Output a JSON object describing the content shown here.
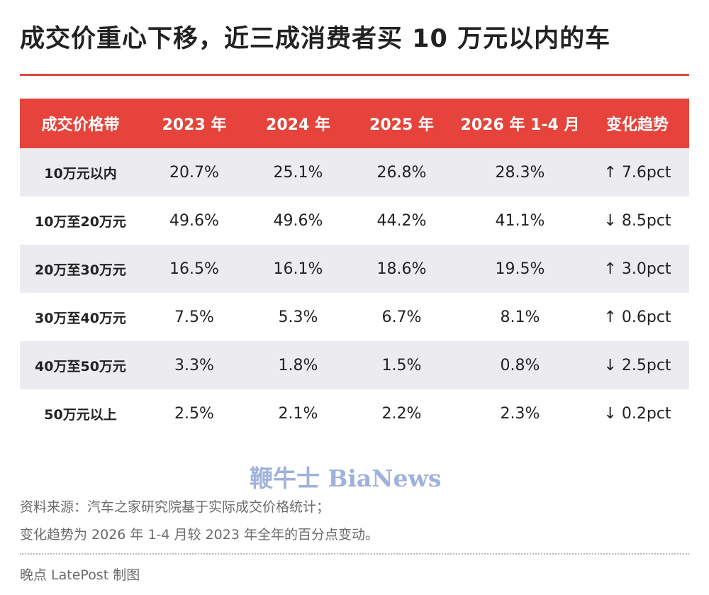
{
  "chart_data": {
    "type": "table",
    "title": "成交价重心下移，近三成消费者买 10 万元以内的车",
    "columns": [
      "成交价格带",
      "2023 年",
      "2024 年",
      "2025 年",
      "2026 年 1-4 月",
      "变化趋势"
    ],
    "rows": [
      [
        "10万元以内",
        "20.7%",
        "25.1%",
        "26.8%",
        "28.3%",
        "↑ 7.6pct"
      ],
      [
        "10万至20万元",
        "49.6%",
        "49.6%",
        "44.2%",
        "41.1%",
        "↓ 8.5pct"
      ],
      [
        "20万至30万元",
        "16.5%",
        "16.1%",
        "18.6%",
        "19.5%",
        "↑ 3.0pct"
      ],
      [
        "30万至40万元",
        "7.5%",
        "5.3%",
        "6.7%",
        "8.1%",
        "↑ 0.6pct"
      ],
      [
        "40万至50万元",
        "3.3%",
        "1.8%",
        "1.5%",
        "0.8%",
        "↓ 2.5pct"
      ],
      [
        "50万元以上",
        "2.5%",
        "2.1%",
        "2.2%",
        "2.3%",
        "↓ 0.2pct"
      ]
    ]
  },
  "brand": "鞭牛士 BiaNews",
  "source_note_1": "资料来源：汽车之家研究院基于实际成交价格统计；",
  "source_note_2": "变化趋势为 2026 年 1-4 月较 2023 年全年的百分点变动。",
  "credit": "晚点 LatePost 制图",
  "colors": {
    "header_bg": "#e5433b",
    "rule": "#d9473f",
    "row_shade": "#ececf0"
  }
}
